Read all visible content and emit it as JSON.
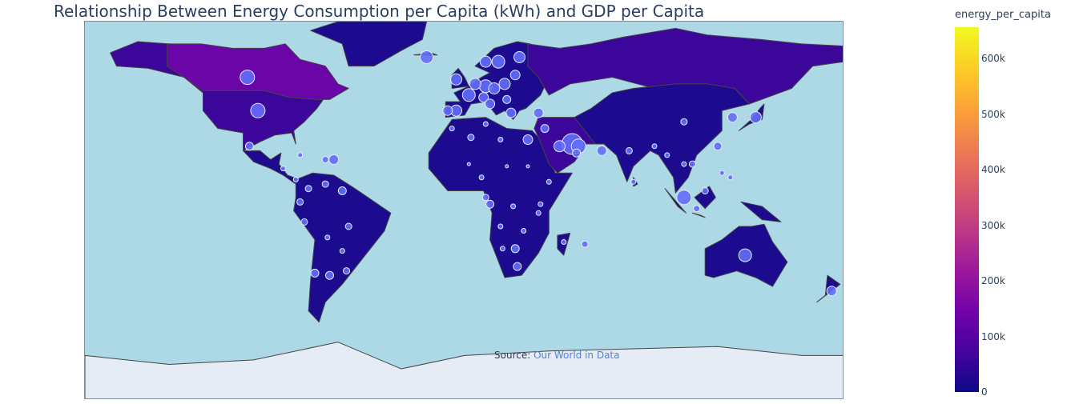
{
  "title": "Relationship Between Energy Consumption per Capita (kWh) and GDP per Capita",
  "source": {
    "prefix": "Source: ",
    "link_text": "Our World in Data"
  },
  "colorbar": {
    "title": "energy_per_capita",
    "ticks": [
      "600k",
      "500k",
      "400k",
      "300k",
      "200k",
      "100k",
      "0"
    ]
  },
  "colors": {
    "ocean": "#add8e6",
    "land_low": "#1c0a8f",
    "land_mid": "#3c069b",
    "land_high": "#6a05a7",
    "antarctica": "#e5ecf6",
    "bubble_fill": "#636efa",
    "bubble_stroke": "#e6e9ff",
    "country_border": "#444444"
  },
  "map_data": {
    "type": "choropleth+scatter_geo",
    "color_scale": "Plasma",
    "color_range": [
      0,
      650000
    ],
    "land_regions": [
      {
        "name": "north-america",
        "tier": "mid"
      },
      {
        "name": "canada",
        "tier": "high"
      },
      {
        "name": "greenland",
        "tier": "low"
      },
      {
        "name": "central-america",
        "tier": "low"
      },
      {
        "name": "south-america",
        "tier": "low"
      },
      {
        "name": "europe",
        "tier": "low"
      },
      {
        "name": "russia",
        "tier": "mid"
      },
      {
        "name": "africa",
        "tier": "low"
      },
      {
        "name": "middle-east",
        "tier": "mid"
      },
      {
        "name": "asia",
        "tier": "low"
      },
      {
        "name": "australia",
        "tier": "low"
      },
      {
        "name": "antarctica",
        "tier": "none"
      }
    ],
    "bubble_locations": [
      {
        "lon": -103,
        "lat": 55,
        "size": 9
      },
      {
        "lon": -98,
        "lat": 40,
        "size": 9
      },
      {
        "lon": -102,
        "lat": 24,
        "size": 5
      },
      {
        "lon": -78,
        "lat": 20,
        "size": 3
      },
      {
        "lon": -66,
        "lat": 18,
        "size": 4
      },
      {
        "lon": -62,
        "lat": 18,
        "size": 6
      },
      {
        "lon": -86,
        "lat": 14,
        "size": 3
      },
      {
        "lon": -80,
        "lat": 9,
        "size": 3
      },
      {
        "lon": -74,
        "lat": 5,
        "size": 4
      },
      {
        "lon": -66,
        "lat": 7,
        "size": 4
      },
      {
        "lon": -58,
        "lat": 4,
        "size": 5
      },
      {
        "lon": -78,
        "lat": -1,
        "size": 4
      },
      {
        "lon": -76,
        "lat": -10,
        "size": 4
      },
      {
        "lon": -55,
        "lat": -12,
        "size": 4
      },
      {
        "lon": -65,
        "lat": -17,
        "size": 3
      },
      {
        "lon": -58,
        "lat": -23,
        "size": 3
      },
      {
        "lon": -71,
        "lat": -33,
        "size": 5
      },
      {
        "lon": -64,
        "lat": -34,
        "size": 5
      },
      {
        "lon": -56,
        "lat": -32,
        "size": 4
      },
      {
        "lon": -18,
        "lat": 64,
        "size": 8
      },
      {
        "lon": 10,
        "lat": 62,
        "size": 7
      },
      {
        "lon": 16,
        "lat": 62,
        "size": 8
      },
      {
        "lon": 26,
        "lat": 64,
        "size": 7
      },
      {
        "lon": -4,
        "lat": 54,
        "size": 7
      },
      {
        "lon": 2,
        "lat": 47,
        "size": 8
      },
      {
        "lon": 10,
        "lat": 51,
        "size": 8
      },
      {
        "lon": 5,
        "lat": 52,
        "size": 7
      },
      {
        "lon": 14,
        "lat": 50,
        "size": 7
      },
      {
        "lon": 19,
        "lat": 52,
        "size": 7
      },
      {
        "lon": 24,
        "lat": 56,
        "size": 6
      },
      {
        "lon": 9,
        "lat": 46,
        "size": 6
      },
      {
        "lon": 12,
        "lat": 43,
        "size": 6
      },
      {
        "lon": -4,
        "lat": 40,
        "size": 7
      },
      {
        "lon": -8,
        "lat": 40,
        "size": 6
      },
      {
        "lon": 22,
        "lat": 39,
        "size": 6
      },
      {
        "lon": 20,
        "lat": 45,
        "size": 5
      },
      {
        "lon": 35,
        "lat": 39,
        "size": 6
      },
      {
        "lon": 38,
        "lat": 32,
        "size": 5
      },
      {
        "lon": 51,
        "lat": 25,
        "size": 13
      },
      {
        "lon": 54,
        "lat": 24,
        "size": 9
      },
      {
        "lon": 45,
        "lat": 24,
        "size": 7
      },
      {
        "lon": 65,
        "lat": 22,
        "size": 6
      },
      {
        "lon": 53,
        "lat": 21,
        "size": 5
      },
      {
        "lon": 30,
        "lat": 27,
        "size": 6
      },
      {
        "lon": 3,
        "lat": 28,
        "size": 4
      },
      {
        "lon": -6,
        "lat": 32,
        "size": 3
      },
      {
        "lon": 17,
        "lat": 27,
        "size": 3
      },
      {
        "lon": 10,
        "lat": 34,
        "size": 3
      },
      {
        "lon": 8,
        "lat": 10,
        "size": 3
      },
      {
        "lon": 2,
        "lat": 16,
        "size": 2
      },
      {
        "lon": 20,
        "lat": 15,
        "size": 2
      },
      {
        "lon": 30,
        "lat": 15,
        "size": 2
      },
      {
        "lon": 40,
        "lat": 8,
        "size": 3
      },
      {
        "lon": 12,
        "lat": -2,
        "size": 5
      },
      {
        "lon": 10,
        "lat": 1,
        "size": 4
      },
      {
        "lon": 23,
        "lat": -3,
        "size": 3
      },
      {
        "lon": 36,
        "lat": -2,
        "size": 3
      },
      {
        "lon": 35,
        "lat": -6,
        "size": 3
      },
      {
        "lon": 17,
        "lat": -12,
        "size": 3
      },
      {
        "lon": 28,
        "lat": -14,
        "size": 3
      },
      {
        "lon": 18,
        "lat": -22,
        "size": 3
      },
      {
        "lon": 24,
        "lat": -22,
        "size": 5
      },
      {
        "lon": 25,
        "lat": -30,
        "size": 5
      },
      {
        "lon": 47,
        "lat": -19,
        "size": 3
      },
      {
        "lon": 57,
        "lat": -20,
        "size": 4
      },
      {
        "lon": 78,
        "lat": 22,
        "size": 4
      },
      {
        "lon": 80,
        "lat": 8,
        "size": 3
      },
      {
        "lon": 90,
        "lat": 24,
        "size": 3
      },
      {
        "lon": 104,
        "lat": 35,
        "size": 4
      },
      {
        "lon": 127,
        "lat": 37,
        "size": 6
      },
      {
        "lon": 138,
        "lat": 37,
        "size": 7
      },
      {
        "lon": 120,
        "lat": 24,
        "size": 5
      },
      {
        "lon": 104,
        "lat": 16,
        "size": 3
      },
      {
        "lon": 108,
        "lat": 16,
        "size": 4
      },
      {
        "lon": 104,
        "lat": 1,
        "size": 9
      },
      {
        "lon": 114,
        "lat": 4,
        "size": 4
      },
      {
        "lon": 122,
        "lat": 12,
        "size": 3
      },
      {
        "lon": 110,
        "lat": -4,
        "size": 4
      },
      {
        "lon": 133,
        "lat": -25,
        "size": 8
      },
      {
        "lon": 174,
        "lat": -41,
        "size": 6
      },
      {
        "lon": 126,
        "lat": 10,
        "size": 3
      },
      {
        "lon": 96,
        "lat": 20,
        "size": 3
      }
    ]
  }
}
